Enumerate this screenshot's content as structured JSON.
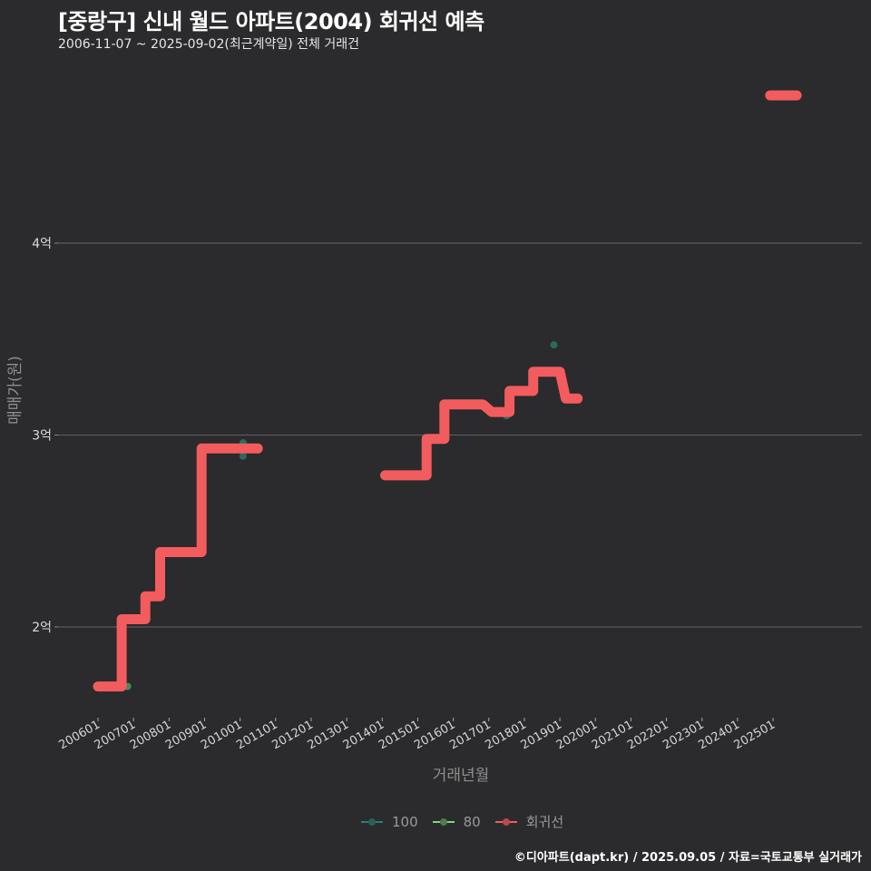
{
  "header": {
    "title": "[중랑구] 신내 월드 아파트(2004) 회귀선 예측",
    "subtitle": "2006-11-07 ~ 2025-09-02(최근계약일) 전체 거래건"
  },
  "footer": {
    "credit": "©디아파트(dapt.kr) / 2025.09.05 / 자료=국토교통부 실거래가"
  },
  "legend": {
    "items": [
      {
        "label": "100",
        "color": "#2a7c7c"
      },
      {
        "label": "80",
        "color": "#7ed87e"
      },
      {
        "label": "회귀선",
        "color": "#f25c5e"
      }
    ]
  },
  "colors": {
    "background": "#2b2a2c",
    "gridline": "#5a5a5a",
    "regression": "#f25c5e",
    "series_100": "#2a6b60",
    "series_80": "#4a8a5a"
  },
  "chart_data": {
    "type": "line",
    "title": "[중랑구] 신내 월드 아파트(2004) 회귀선 예측",
    "subtitle": "2006-11-07 ~ 2025-09-02(최근계약일) 전체 거래건",
    "xlabel": "거래년월",
    "ylabel": "매매가(원)",
    "x_ticks": [
      "200601",
      "200701",
      "200801",
      "200901",
      "201001",
      "201101",
      "201201",
      "201301",
      "201401",
      "201501",
      "201601",
      "201701",
      "201801",
      "201901",
      "202001",
      "202101",
      "202201",
      "202301",
      "202401",
      "202501"
    ],
    "y_ticks": [
      "2억",
      "3억",
      "4억"
    ],
    "y_tick_values": [
      2.0,
      3.0,
      4.0
    ],
    "ylim": [
      1.55,
      4.85
    ],
    "y_unit": "억원",
    "grid": "horizontal major",
    "legend_position": "bottom",
    "series": [
      {
        "name": "회귀선",
        "style": "step line (thick)",
        "segments": [
          {
            "points": [
              [
                "2006-01",
                1.69
              ],
              [
                "2006-09",
                1.69
              ],
              [
                "2006-09",
                2.04
              ],
              [
                "2007-05",
                2.04
              ],
              [
                "2007-05",
                2.16
              ],
              [
                "2007-10",
                2.16
              ],
              [
                "2007-10",
                2.39
              ],
              [
                "2008-12",
                2.39
              ],
              [
                "2008-12",
                2.93
              ],
              [
                "2010-07",
                2.93
              ]
            ]
          },
          {
            "points": [
              [
                "2014-02",
                2.79
              ],
              [
                "2015-04",
                2.79
              ],
              [
                "2015-04",
                2.98
              ],
              [
                "2015-10",
                2.98
              ],
              [
                "2015-10",
                3.16
              ],
              [
                "2016-11",
                3.16
              ],
              [
                "2017-02",
                3.12
              ],
              [
                "2017-08",
                3.12
              ],
              [
                "2017-08",
                3.23
              ],
              [
                "2018-04",
                3.23
              ],
              [
                "2018-04",
                3.33
              ],
              [
                "2019-01",
                3.33
              ],
              [
                "2019-03",
                3.19
              ],
              [
                "2019-07",
                3.19
              ]
            ]
          },
          {
            "points": [
              [
                "2024-12",
                4.77
              ],
              [
                "2025-09",
                4.77
              ]
            ]
          }
        ]
      },
      {
        "name": "100",
        "style": "scatter",
        "points": [
          [
            "2007-12",
            2.39
          ],
          [
            "2010-02",
            2.96
          ],
          [
            "2010-02",
            2.89
          ],
          [
            "2017-07",
            3.1
          ],
          [
            "2018-11",
            3.47
          ],
          [
            "2019-03",
            3.19
          ],
          [
            "2025-02",
            4.77
          ]
        ]
      },
      {
        "name": "80",
        "style": "scatter",
        "points": [
          [
            "2006-11",
            1.69
          ]
        ]
      }
    ]
  }
}
